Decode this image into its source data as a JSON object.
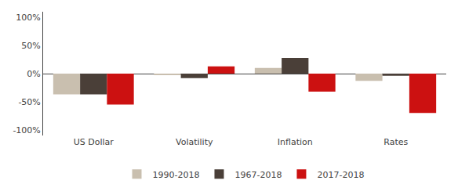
{
  "chart_data": {
    "type": "bar",
    "categories": [
      "US Dollar",
      "Volatility",
      "Inflation",
      "Rates"
    ],
    "series": [
      {
        "name": "1990-2018",
        "color": "#c9bfaf",
        "values": [
          -0.37,
          -0.02,
          0.1,
          -0.13
        ]
      },
      {
        "name": "1967-2018",
        "color": "#4a3f38",
        "values": [
          -0.37,
          -0.08,
          0.28,
          -0.04
        ]
      },
      {
        "name": "2017-2018",
        "color": "#cc1111",
        "values": [
          -0.55,
          0.13,
          -0.32,
          -0.7
        ]
      }
    ],
    "ylim": [
      -1.1,
      1.1
    ],
    "yticks": [
      {
        "value": -1.0,
        "label": "-100%"
      },
      {
        "value": -0.5,
        "label": "-50%"
      },
      {
        "value": 0,
        "label": "0%"
      },
      {
        "value": 0.5,
        "label": "50%"
      },
      {
        "value": 1.0,
        "label": "100%"
      }
    ],
    "grid": false,
    "legend": "bottom"
  }
}
